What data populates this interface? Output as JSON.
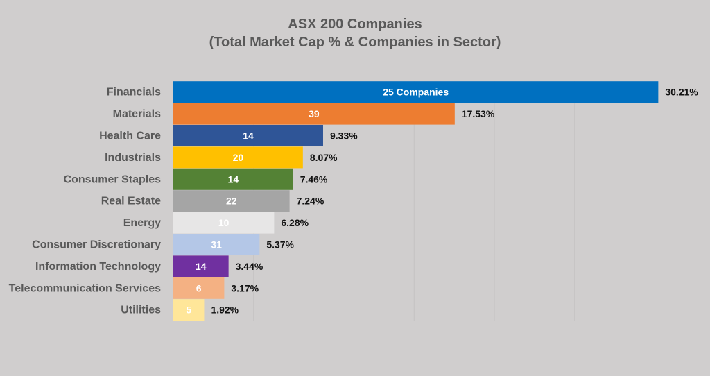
{
  "chart_data": {
    "type": "bar",
    "orientation": "horizontal",
    "title": "ASX 200 Companies",
    "subtitle": "(Total Market Cap % & Companies in Sector)",
    "xlabel": "",
    "ylabel": "",
    "xlim": [
      0,
      30
    ],
    "grid": true,
    "legend": "none",
    "categories": [
      "Financials",
      "Materials",
      "Health Care",
      "Industrials",
      "Consumer Staples",
      "Real Estate",
      "Energy",
      "Consumer Discretionary",
      "Information Technology",
      "Telecommunication Services",
      "Utilities"
    ],
    "values": [
      30.21,
      17.53,
      9.33,
      8.07,
      7.46,
      7.24,
      6.28,
      5.37,
      3.44,
      3.17,
      1.92
    ],
    "value_labels": [
      "30.21%",
      "17.53%",
      "9.33%",
      "8.07%",
      "7.46%",
      "7.24%",
      "6.28%",
      "5.37%",
      "3.44%",
      "3.17%",
      "1.92%"
    ],
    "inner_labels": [
      "25 Companies",
      "39",
      "14",
      "20",
      "14",
      "22",
      "10",
      "31",
      "14",
      "6",
      "5"
    ],
    "colors": [
      "#0070c0",
      "#ed7d31",
      "#2f5597",
      "#ffc000",
      "#548235",
      "#a5a5a5",
      "#e7e6e6",
      "#b4c7e7",
      "#7030a0",
      "#f4b183",
      "#ffe699"
    ]
  }
}
